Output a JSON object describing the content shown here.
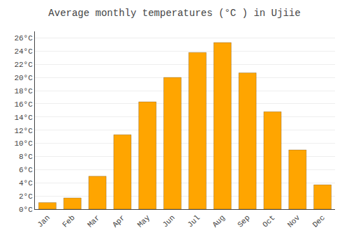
{
  "chart_data": {
    "type": "bar",
    "title": "Average monthly temperatures (°C ) in Ujiie",
    "categories": [
      "Jan",
      "Feb",
      "Mar",
      "Apr",
      "May",
      "Jun",
      "Jul",
      "Aug",
      "Sep",
      "Oct",
      "Nov",
      "Dec"
    ],
    "values": [
      1.0,
      1.7,
      5.0,
      11.3,
      16.3,
      20.0,
      23.8,
      25.3,
      20.7,
      14.8,
      9.0,
      3.7
    ],
    "color": "#FFA500",
    "ylim": [
      0,
      27
    ],
    "yticks": [
      {
        "value": 0,
        "label": "0°C"
      },
      {
        "value": 2,
        "label": "2°C"
      },
      {
        "value": 4,
        "label": "4°C"
      },
      {
        "value": 6,
        "label": "6°C"
      },
      {
        "value": 8,
        "label": "8°C"
      },
      {
        "value": 10,
        "label": "10°C"
      },
      {
        "value": 12,
        "label": "12°C"
      },
      {
        "value": 14,
        "label": "14°C"
      },
      {
        "value": 16,
        "label": "16°C"
      },
      {
        "value": 18,
        "label": "18°C"
      },
      {
        "value": 20,
        "label": "20°C"
      },
      {
        "value": 22,
        "label": "22°C"
      },
      {
        "value": 24,
        "label": "24°C"
      },
      {
        "value": 26,
        "label": "26°C"
      }
    ],
    "grid": true
  }
}
